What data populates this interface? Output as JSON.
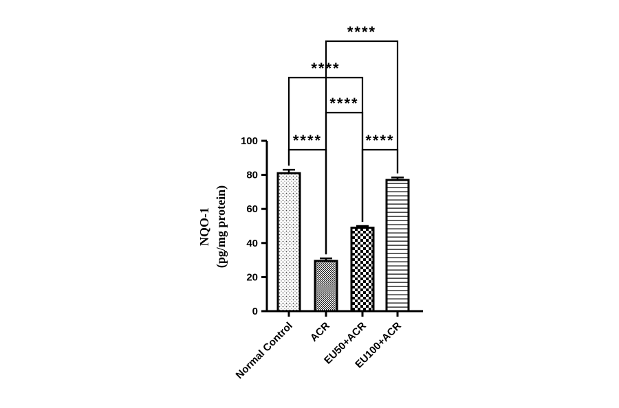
{
  "chart_data": {
    "type": "bar",
    "title": "",
    "ylabel_line1": "NQO-1",
    "ylabel_line2": "(pg/mg protein)",
    "xlabel": "",
    "ylim": [
      0,
      100
    ],
    "yticks": [
      0,
      20,
      40,
      60,
      80,
      100
    ],
    "categories": [
      "Normal Control",
      "ACR",
      "EU50+ACR",
      "EU100+ACR"
    ],
    "values": [
      81,
      29.5,
      49,
      77
    ],
    "errors": [
      2,
      1.5,
      1,
      1.5
    ],
    "fill_patterns": [
      "dots",
      "fine-crosshatch",
      "checkerboard",
      "horizontal-lines"
    ],
    "grid": false,
    "legend": "none",
    "significance": [
      {
        "from": 0,
        "to": 1,
        "label": "****"
      },
      {
        "from": 2,
        "to": 3,
        "label": "****"
      },
      {
        "from": 1,
        "to": 2,
        "label": "****"
      },
      {
        "from": 0,
        "to": 2,
        "label": "****"
      },
      {
        "from": 1,
        "to": 3,
        "label": "****"
      }
    ]
  }
}
